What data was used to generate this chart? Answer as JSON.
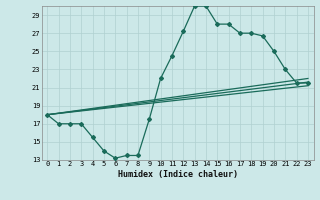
{
  "xlabel": "Humidex (Indice chaleur)",
  "bg_color": "#cce8e8",
  "line_color": "#1a6b5a",
  "grid_color": "#b0d0d0",
  "xlim": [
    -0.5,
    23.5
  ],
  "ylim": [
    13,
    30
  ],
  "yticks": [
    13,
    15,
    17,
    19,
    21,
    23,
    25,
    27,
    29
  ],
  "xticks": [
    0,
    1,
    2,
    3,
    4,
    5,
    6,
    7,
    8,
    9,
    10,
    11,
    12,
    13,
    14,
    15,
    16,
    17,
    18,
    19,
    20,
    21,
    22,
    23
  ],
  "line1_x": [
    0,
    1,
    2,
    3,
    4,
    5,
    6,
    7,
    8,
    9,
    10,
    11,
    12,
    13,
    14,
    15,
    16,
    17,
    18,
    19,
    20,
    21,
    22,
    23
  ],
  "line1_y": [
    18,
    17,
    17,
    17,
    15.5,
    14.0,
    13.2,
    13.5,
    13.5,
    17.5,
    22.0,
    24.5,
    27.2,
    30.0,
    30.0,
    28.0,
    28.0,
    27.0,
    27.0,
    26.7,
    25.0,
    23.0,
    21.5,
    21.5
  ],
  "line2_x": [
    0,
    23
  ],
  "line2_y": [
    18,
    22.0
  ],
  "line3_x": [
    0,
    23
  ],
  "line3_y": [
    18,
    21.2
  ],
  "line4_x": [
    0,
    23
  ],
  "line4_y": [
    18,
    21.6
  ]
}
